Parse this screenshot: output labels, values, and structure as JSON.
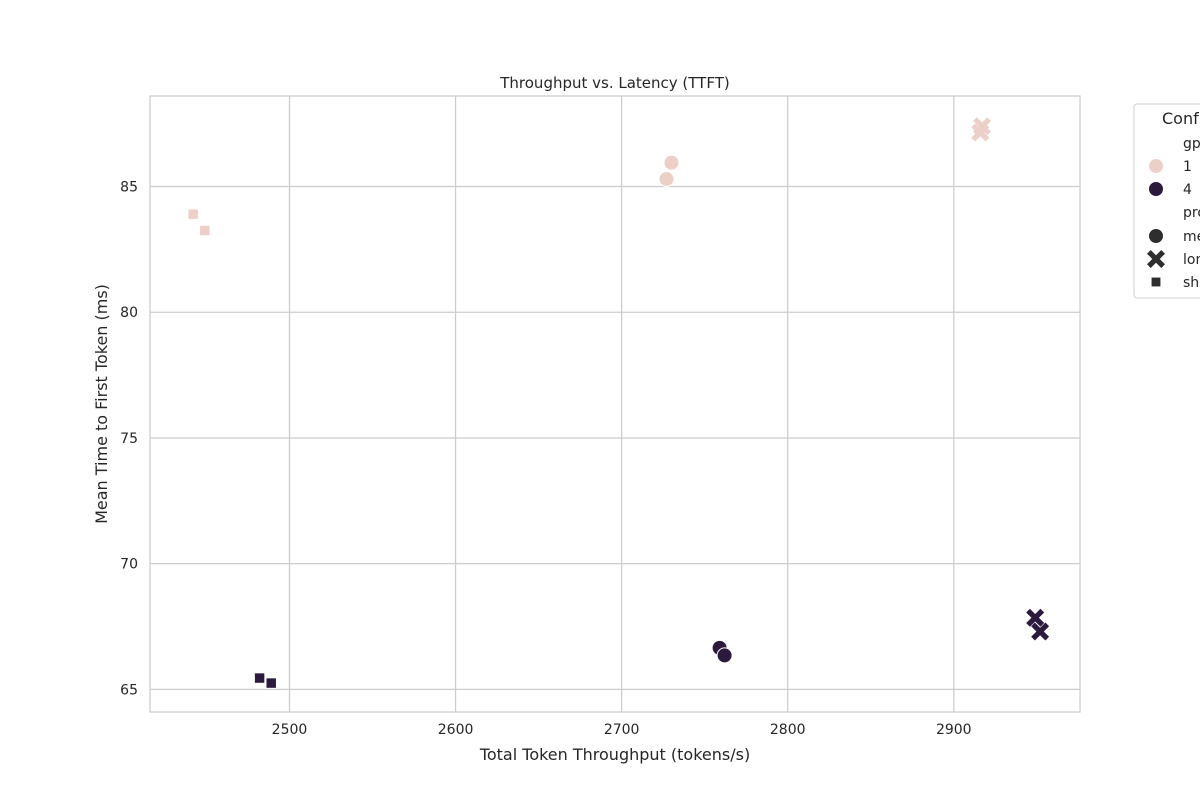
{
  "chart_data": {
    "type": "scatter",
    "title": "Throughput vs. Latency (TTFT)",
    "xlabel": "Total Token Throughput (tokens/s)",
    "ylabel": "Mean Time to First Token (ms)",
    "xlim": [
      2416,
      2976
    ],
    "ylim": [
      64.1,
      88.6
    ],
    "xticks": [
      2500,
      2600,
      2700,
      2800,
      2900
    ],
    "yticks": [
      65,
      70,
      75,
      80,
      85
    ],
    "grid": true,
    "legend": {
      "title": "Conf",
      "placement": "outside-right",
      "hue_title": "gp",
      "style_title": "pro",
      "hue_entries": [
        {
          "label": "1",
          "color": "#ecd0c8"
        },
        {
          "label": "4",
          "color": "#2b1a3d"
        }
      ],
      "style_entries": [
        {
          "label": "me",
          "marker": "circle"
        },
        {
          "label": "lon",
          "marker": "x"
        },
        {
          "label": "sh",
          "marker": "square"
        }
      ]
    },
    "series": [
      {
        "gpu": "1",
        "marker": "circle",
        "color": "#ecd0c8",
        "x": [
          2730,
          2727
        ],
        "y": [
          85.95,
          85.3
        ]
      },
      {
        "gpu": "1",
        "marker": "x",
        "color": "#ecd0c8",
        "x": [
          2917,
          2916
        ],
        "y": [
          87.4,
          87.15
        ]
      },
      {
        "gpu": "1",
        "marker": "square",
        "color": "#ecd0c8",
        "x": [
          2442,
          2449
        ],
        "y": [
          83.9,
          83.25
        ]
      },
      {
        "gpu": "4",
        "marker": "circle",
        "color": "#2b1a3d",
        "x": [
          2759,
          2762
        ],
        "y": [
          66.65,
          66.35
        ]
      },
      {
        "gpu": "4",
        "marker": "x",
        "color": "#2b1a3d",
        "x": [
          2949,
          2952
        ],
        "y": [
          67.85,
          67.3
        ]
      },
      {
        "gpu": "4",
        "marker": "square",
        "color": "#2b1a3d",
        "x": [
          2482,
          2489
        ],
        "y": [
          65.45,
          65.25
        ]
      }
    ]
  }
}
